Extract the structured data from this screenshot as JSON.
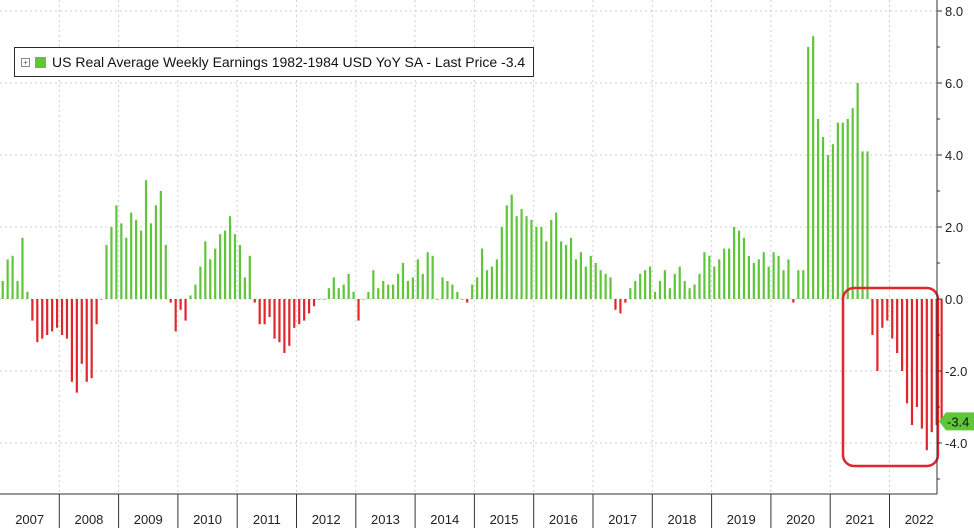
{
  "chart_data": {
    "type": "bar",
    "legend": {
      "label": "US Real Average Weekly Earnings 1982-1984 USD YoY SA - Last Price -3.4",
      "swatch_color": "#5fc53b",
      "placement": "top-left"
    },
    "colors": {
      "positive": "#5fc53b",
      "negative": "#e0262c",
      "highlight_box": "#e0262c"
    },
    "ylim": [
      -5.4,
      8.2
    ],
    "y_axis_side": "right",
    "y_ticks": [
      "8.0",
      "6.0",
      "4.0",
      "2.0",
      "0.0",
      "-2.0",
      "-4.0"
    ],
    "y_tick_values": [
      8,
      6,
      4,
      2,
      0,
      -2,
      -4
    ],
    "last_price_label": "-3.4",
    "last_price_value": -3.4,
    "x_labels": [
      "2007",
      "2008",
      "2009",
      "2010",
      "2011",
      "2012",
      "2013",
      "2014",
      "2015",
      "2016",
      "2017",
      "2018",
      "2019",
      "2020",
      "2021",
      "2022"
    ],
    "year_start": 2007,
    "highlight_range": [
      "2021-04",
      "2022-09"
    ],
    "series": [
      {
        "name": "US Real Average Weekly Earnings 1982-1984 USD YoY SA",
        "frequency": "monthly",
        "start": "2007-01",
        "values": [
          0.5,
          1.1,
          1.2,
          0.5,
          1.7,
          0.2,
          -0.6,
          -1.2,
          -1.1,
          -1.0,
          -0.9,
          -0.8,
          -1.0,
          -1.1,
          -2.3,
          -2.6,
          -1.8,
          -2.3,
          -2.2,
          -0.7,
          0.0,
          1.5,
          2.0,
          2.6,
          2.1,
          1.7,
          2.4,
          2.2,
          1.9,
          3.3,
          2.1,
          2.6,
          3.0,
          1.5,
          -0.1,
          -0.9,
          -0.3,
          -0.6,
          0.1,
          0.4,
          0.9,
          1.6,
          1.1,
          1.4,
          1.8,
          1.9,
          2.3,
          1.8,
          1.5,
          0.6,
          1.2,
          -0.1,
          -0.7,
          -0.7,
          -0.5,
          -1.1,
          -1.2,
          -1.5,
          -1.3,
          -0.8,
          -0.7,
          -0.6,
          -0.4,
          -0.2,
          0.0,
          0.0,
          0.3,
          0.6,
          0.3,
          0.4,
          0.7,
          0.2,
          -0.6,
          0.0,
          0.2,
          0.8,
          0.3,
          0.5,
          0.4,
          0.4,
          0.7,
          1.0,
          0.5,
          0.6,
          1.1,
          0.7,
          1.3,
          1.2,
          0.0,
          0.6,
          0.5,
          0.4,
          0.2,
          0.0,
          -0.1,
          0.4,
          0.6,
          1.4,
          0.8,
          0.9,
          1.1,
          2.0,
          2.6,
          2.9,
          2.3,
          2.5,
          2.3,
          2.2,
          2.0,
          2.0,
          1.6,
          2.2,
          2.4,
          1.6,
          1.5,
          1.7,
          1.1,
          1.3,
          0.9,
          1.2,
          1.0,
          0.8,
          0.7,
          0.6,
          -0.3,
          -0.4,
          -0.1,
          0.3,
          0.5,
          0.7,
          0.8,
          0.9,
          0.2,
          0.5,
          0.8,
          0.3,
          0.7,
          0.9,
          0.5,
          0.3,
          0.4,
          0.7,
          1.3,
          1.2,
          0.9,
          1.1,
          1.4,
          1.4,
          2.0,
          1.9,
          1.7,
          1.2,
          1.0,
          1.1,
          1.3,
          0.9,
          1.3,
          1.2,
          0.8,
          1.1,
          -0.1,
          0.8,
          0.8,
          7.0,
          7.3,
          5.0,
          4.5,
          4.0,
          4.3,
          4.9,
          4.9,
          5.0,
          5.3,
          6.0,
          4.1,
          4.1,
          -1.0,
          -2.0,
          -0.8,
          -0.6,
          -1.1,
          -1.5,
          -2.0,
          -2.9,
          -3.5,
          -3.0,
          -3.6,
          -4.2,
          -3.7,
          -3.5,
          -3.4
        ]
      }
    ]
  }
}
